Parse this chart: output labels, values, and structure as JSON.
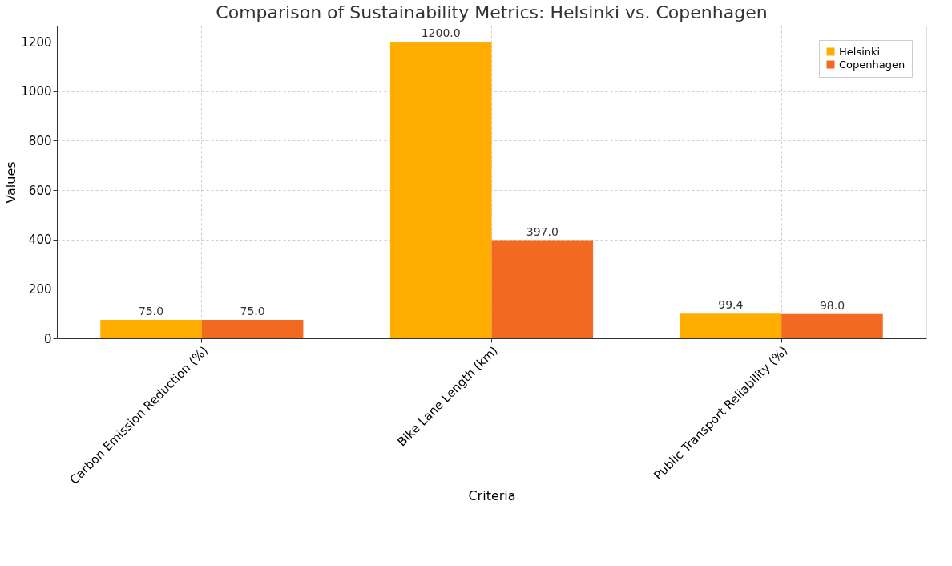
{
  "chart_data": {
    "type": "bar",
    "title": "Comparison of Sustainability Metrics: Helsinki vs. Copenhagen",
    "xlabel": "Criteria",
    "ylabel": "Values",
    "categories": [
      "Carbon Emission Reduction (%)",
      "Bike Lane Length (km)",
      "Public Transport Reliability (%)"
    ],
    "series": [
      {
        "name": "Helsinki",
        "color": "#ffad00",
        "values": [
          75.0,
          1200.0,
          99.4
        ],
        "value_labels": [
          "75.0",
          "1200.0",
          "99.4"
        ]
      },
      {
        "name": "Copenhagen",
        "color": "#f26a22",
        "values": [
          75.0,
          397.0,
          98.0
        ],
        "value_labels": [
          "75.0",
          "397.0",
          "98.0"
        ]
      }
    ],
    "ylim": [
      0,
      1265
    ],
    "yticks": [
      0,
      200,
      400,
      600,
      800,
      1000,
      1200
    ],
    "grid": true,
    "legend": "top right"
  }
}
